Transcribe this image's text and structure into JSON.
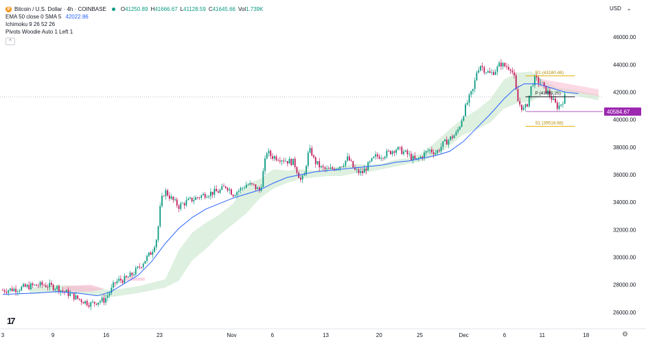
{
  "legend": {
    "symbol_title": "Bitcoin / U.S. Dollar · 4h · COINBASE",
    "ohlc": [
      {
        "k": "O",
        "v": "41250.89"
      },
      {
        "k": "H",
        "v": "41666.67"
      },
      {
        "k": "L",
        "v": "41128.59"
      },
      {
        "k": "C",
        "v": "41645.66"
      },
      {
        "k": "Vol",
        "v": "1.739K"
      }
    ],
    "ema_label": "EMA 50 close 0 SMA 5",
    "ema_value": "42022.86",
    "ichimoku_label": "Ichimoku 9 26 52 26",
    "pivots_label": "Pivots Woodie Auto 1 Left 1",
    "collapse_glyph": "^"
  },
  "currency": {
    "label": "USD",
    "caret": "⌄"
  },
  "logo_text": "17",
  "settings_glyph": "⚙",
  "chart_data": {
    "type": "candlestick",
    "y_ticks": [
      "46000.00",
      "44000.00",
      "42000.00",
      "40000.00",
      "38000.00",
      "36000.00",
      "34000.00",
      "32000.00",
      "30000.00",
      "28000.00",
      "26000.00"
    ],
    "x_ticks": [
      "3",
      "9",
      "16",
      "23",
      "Nov",
      "6",
      "13",
      "20",
      "25",
      "Dec",
      "6",
      "11",
      "18"
    ],
    "ylim": [
      25000,
      47300
    ],
    "price_label": "40584.67",
    "pivots": [
      {
        "label": "R1 (43180.48)",
        "value": 43180.48
      },
      {
        "label": "P (41665.25)",
        "value": 41665.25
      },
      {
        "label": "S1 (39518.68)",
        "value": 39518.68
      }
    ],
    "colors": {
      "up": "#089981",
      "down": "#c2185b",
      "ema": "#2962ff",
      "cloud": "#c8e6c9",
      "cloud_bear": "#f8bbd0",
      "pivot_r": "#e0b000",
      "pivot_p": "#131722",
      "price_label_bg": "#9c27b0"
    },
    "close_path": [
      [
        0,
        27600
      ],
      [
        2,
        27700
      ],
      [
        4,
        27900
      ],
      [
        6,
        28000
      ],
      [
        8,
        27800
      ],
      [
        9,
        27500
      ],
      [
        10,
        27300
      ],
      [
        11,
        27000
      ],
      [
        12,
        26800
      ],
      [
        13,
        26600
      ],
      [
        14,
        26800
      ],
      [
        15,
        26900
      ],
      [
        16,
        27600
      ],
      [
        16.5,
        28100
      ],
      [
        17,
        28300
      ],
      [
        18,
        28400
      ],
      [
        19,
        28700
      ],
      [
        20,
        29200
      ],
      [
        21,
        29800
      ],
      [
        22,
        30400
      ],
      [
        22.8,
        31500
      ],
      [
        23.3,
        33800
      ],
      [
        23.7,
        34600
      ],
      [
        24,
        34800
      ],
      [
        25,
        34200
      ],
      [
        26,
        33700
      ],
      [
        27,
        34000
      ],
      [
        28,
        34200
      ],
      [
        29,
        34400
      ],
      [
        30,
        34600
      ],
      [
        31,
        34700
      ],
      [
        32,
        34800
      ],
      [
        33,
        35200
      ],
      [
        34,
        34600
      ],
      [
        35,
        34900
      ],
      [
        36,
        35300
      ],
      [
        37,
        35200
      ],
      [
        38,
        34800
      ],
      [
        38.5,
        36300
      ],
      [
        39,
        37700
      ],
      [
        39.5,
        37400
      ],
      [
        40,
        37300
      ],
      [
        41,
        37200
      ],
      [
        42,
        37000
      ],
      [
        43,
        36900
      ],
      [
        44,
        35600
      ],
      [
        44.5,
        35800
      ],
      [
        45,
        37400
      ],
      [
        45.5,
        37800
      ],
      [
        46,
        37000
      ],
      [
        47,
        36500
      ],
      [
        48,
        36300
      ],
      [
        49,
        36500
      ],
      [
        50,
        36700
      ],
      [
        51,
        37200
      ],
      [
        52,
        36300
      ],
      [
        53,
        36100
      ],
      [
        54,
        36700
      ],
      [
        55,
        37300
      ],
      [
        56,
        37400
      ],
      [
        57,
        37600
      ],
      [
        58,
        37900
      ],
      [
        59,
        37700
      ],
      [
        60,
        37400
      ],
      [
        61,
        37000
      ],
      [
        62,
        37400
      ],
      [
        63,
        37800
      ],
      [
        64,
        37600
      ],
      [
        65,
        38200
      ],
      [
        66,
        38600
      ],
      [
        67,
        39000
      ],
      [
        67.5,
        39600
      ],
      [
        68,
        40400
      ],
      [
        68.5,
        41100
      ],
      [
        69,
        41700
      ],
      [
        69.5,
        42200
      ],
      [
        70,
        43500
      ],
      [
        70.5,
        44000
      ],
      [
        71,
        43700
      ],
      [
        72,
        43300
      ],
      [
        73,
        43700
      ],
      [
        73.5,
        44100
      ],
      [
        74,
        43900
      ],
      [
        75,
        43800
      ],
      [
        75.5,
        43100
      ],
      [
        76,
        41400
      ],
      [
        76.5,
        41000
      ],
      [
        77,
        40700
      ],
      [
        77.5,
        41200
      ],
      [
        78,
        42300
      ],
      [
        78.5,
        43000
      ],
      [
        79,
        42800
      ],
      [
        79.5,
        42700
      ],
      [
        80,
        42200
      ],
      [
        80.5,
        42000
      ],
      [
        81,
        41600
      ],
      [
        81.5,
        41200
      ],
      [
        82,
        40900
      ],
      [
        82.5,
        41200
      ],
      [
        83,
        41645
      ]
    ],
    "ema_path": [
      [
        0,
        27300
      ],
      [
        5,
        27400
      ],
      [
        8,
        27500
      ],
      [
        11,
        27400
      ],
      [
        14,
        27200
      ],
      [
        16,
        27500
      ],
      [
        18,
        28100
      ],
      [
        20,
        28700
      ],
      [
        22,
        29700
      ],
      [
        24,
        31000
      ],
      [
        26,
        32100
      ],
      [
        28,
        32900
      ],
      [
        30,
        33500
      ],
      [
        32,
        33900
      ],
      [
        34,
        34300
      ],
      [
        36,
        34600
      ],
      [
        38,
        34900
      ],
      [
        40,
        35400
      ],
      [
        42,
        35800
      ],
      [
        44,
        36000
      ],
      [
        46,
        36200
      ],
      [
        48,
        36300
      ],
      [
        50,
        36400
      ],
      [
        52,
        36500
      ],
      [
        54,
        36600
      ],
      [
        56,
        36700
      ],
      [
        58,
        36900
      ],
      [
        60,
        37000
      ],
      [
        62,
        37200
      ],
      [
        64,
        37400
      ],
      [
        66,
        37700
      ],
      [
        68,
        38400
      ],
      [
        70,
        39400
      ],
      [
        72,
        40400
      ],
      [
        74,
        41500
      ],
      [
        75.5,
        42200
      ],
      [
        77,
        42600
      ],
      [
        79,
        42600
      ],
      [
        81,
        42300
      ],
      [
        83,
        42000
      ],
      [
        85,
        41900
      ]
    ],
    "cloud_top": [
      [
        4,
        27800
      ],
      [
        8,
        28000
      ],
      [
        12,
        27900
      ],
      [
        16,
        27600
      ],
      [
        20,
        27900
      ],
      [
        24,
        28400
      ],
      [
        26,
        30500
      ],
      [
        28,
        31800
      ],
      [
        30,
        32500
      ],
      [
        32,
        33100
      ],
      [
        34,
        33900
      ],
      [
        36,
        35300
      ],
      [
        38,
        35700
      ],
      [
        40,
        36400
      ],
      [
        42,
        36300
      ],
      [
        44,
        36400
      ],
      [
        46,
        36300
      ],
      [
        48,
        36500
      ],
      [
        50,
        36600
      ],
      [
        52,
        36800
      ],
      [
        54,
        36700
      ],
      [
        56,
        36800
      ],
      [
        58,
        37100
      ],
      [
        60,
        37200
      ],
      [
        62,
        37600
      ],
      [
        64,
        38400
      ],
      [
        66,
        39300
      ],
      [
        68,
        40100
      ],
      [
        70,
        40700
      ],
      [
        72,
        41500
      ],
      [
        74,
        42900
      ],
      [
        76,
        43400
      ],
      [
        78,
        43500
      ],
      [
        80,
        42800
      ],
      [
        82,
        42300
      ],
      [
        84,
        42200
      ],
      [
        86,
        42000
      ],
      [
        88,
        41800
      ]
    ],
    "cloud_bottom": [
      [
        4,
        27300
      ],
      [
        8,
        27500
      ],
      [
        12,
        27300
      ],
      [
        16,
        27100
      ],
      [
        20,
        27400
      ],
      [
        24,
        27800
      ],
      [
        26,
        28300
      ],
      [
        28,
        29800
      ],
      [
        30,
        30600
      ],
      [
        32,
        31600
      ],
      [
        34,
        32400
      ],
      [
        36,
        33200
      ],
      [
        38,
        34300
      ],
      [
        40,
        35000
      ],
      [
        42,
        35400
      ],
      [
        44,
        35700
      ],
      [
        46,
        35800
      ],
      [
        48,
        35900
      ],
      [
        50,
        35900
      ],
      [
        52,
        36100
      ],
      [
        54,
        36200
      ],
      [
        56,
        36400
      ],
      [
        58,
        36600
      ],
      [
        60,
        36800
      ],
      [
        62,
        37000
      ],
      [
        64,
        37400
      ],
      [
        66,
        38100
      ],
      [
        68,
        38900
      ],
      [
        70,
        39300
      ],
      [
        72,
        39800
      ],
      [
        74,
        40800
      ],
      [
        76,
        41200
      ],
      [
        78,
        41300
      ],
      [
        80,
        41900
      ],
      [
        82,
        41900
      ],
      [
        84,
        41800
      ],
      [
        86,
        41600
      ],
      [
        88,
        41400
      ]
    ]
  }
}
